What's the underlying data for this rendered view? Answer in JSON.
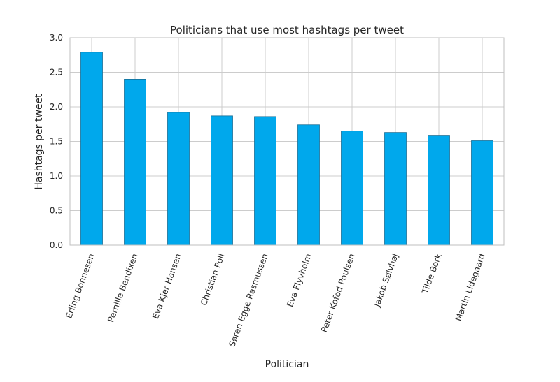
{
  "chart_data": {
    "type": "bar",
    "title": "Politicians that use most hashtags per tweet",
    "xlabel": "Politician",
    "ylabel": "Hashtags per tweet",
    "categories": [
      "Erling Bonnesen",
      "Pernille Bendixen",
      "Eva Kjer Hansen",
      "Christian Poll",
      "Søren Egge Rasmussen",
      "Eva Flyvholm",
      "Peter Kofod Poulsen",
      "Jakob Sølvhøj",
      "Tilde Bork",
      "Martin Lidegaard"
    ],
    "values": [
      2.79,
      2.4,
      1.92,
      1.87,
      1.86,
      1.74,
      1.65,
      1.63,
      1.58,
      1.51
    ],
    "ylim": [
      0,
      3.0
    ],
    "yticks": [
      "0.0",
      "0.5",
      "1.0",
      "1.5",
      "2.0",
      "2.5",
      "3.0"
    ],
    "grid": true,
    "bar_color": "#00a8ec",
    "bar_edge_color": "#1a6f96",
    "grid_color": "#cccccc"
  }
}
